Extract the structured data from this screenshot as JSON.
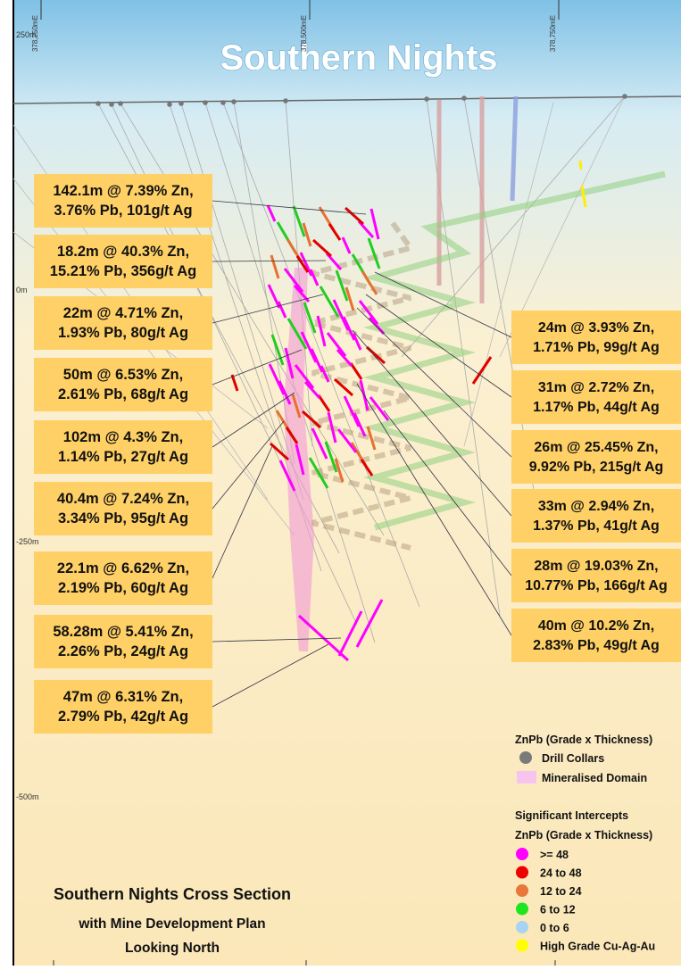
{
  "title": "Southern Nights",
  "easting_labels": [
    "378,250mE",
    "378,500mE",
    "378,750mE"
  ],
  "elevation_labels": [
    "250m",
    "0m",
    "-250m",
    "-500m"
  ],
  "callouts_left": [
    {
      "lines": [
        "142.1m @ 7.39% Zn,",
        "3.76% Pb, 101g/t Ag"
      ]
    },
    {
      "lines": [
        "18.2m @ 40.3% Zn,",
        "15.21% Pb, 356g/t Ag"
      ]
    },
    {
      "lines": [
        "22m @ 4.71% Zn,",
        "1.93% Pb, 80g/t Ag"
      ]
    },
    {
      "lines": [
        "50m @ 6.53% Zn,",
        "2.61% Pb, 68g/t Ag"
      ]
    },
    {
      "lines": [
        "102m @ 4.3% Zn,",
        "1.14% Pb, 27g/t Ag"
      ]
    },
    {
      "lines": [
        "40.4m @ 7.24% Zn,",
        "3.34% Pb, 95g/t Ag"
      ]
    },
    {
      "lines": [
        "22.1m @ 6.62% Zn,",
        "2.19% Pb, 60g/t Ag"
      ]
    },
    {
      "lines": [
        "58.28m @ 5.41% Zn,",
        "2.26% Pb, 24g/t Ag"
      ]
    },
    {
      "lines": [
        "47m @ 6.31% Zn,",
        "2.79% Pb, 42g/t Ag"
      ]
    }
  ],
  "callouts_right": [
    {
      "lines": [
        "24m @ 3.93% Zn,",
        "1.71% Pb, 99g/t Ag"
      ]
    },
    {
      "lines": [
        "31m @ 2.72% Zn,",
        "1.17% Pb, 44g/t Ag"
      ]
    },
    {
      "lines": [
        "26m @ 25.45% Zn,",
        "9.92% Pb, 215g/t Ag"
      ]
    },
    {
      "lines": [
        "33m @ 2.94% Zn,",
        "1.37% Pb, 41g/t Ag"
      ]
    },
    {
      "lines": [
        "28m @ 19.03% Zn,",
        "10.77% Pb, 166g/t Ag"
      ]
    },
    {
      "lines": [
        "40m @ 10.2% Zn,",
        "2.83% Pb, 49g/t Ag"
      ]
    }
  ],
  "legend": {
    "title": "ZnPb (Grade x Thickness)",
    "collar_items": [
      "Drill Collars",
      "Mineralised Domain"
    ],
    "intercepts_title": "Significant Intercepts",
    "intercepts_subtitle": "ZnPb (Grade x Thickness)",
    "intercept_items": [
      ">= 48",
      "24 to 48",
      "12 to 24",
      "6 to 12",
      "0 to 6",
      "High Grade Cu-Ag-Au"
    ]
  },
  "footer": {
    "lines": [
      "Southern Nights Cross Section",
      "with Mine Development Plan",
      "Looking North"
    ]
  }
}
